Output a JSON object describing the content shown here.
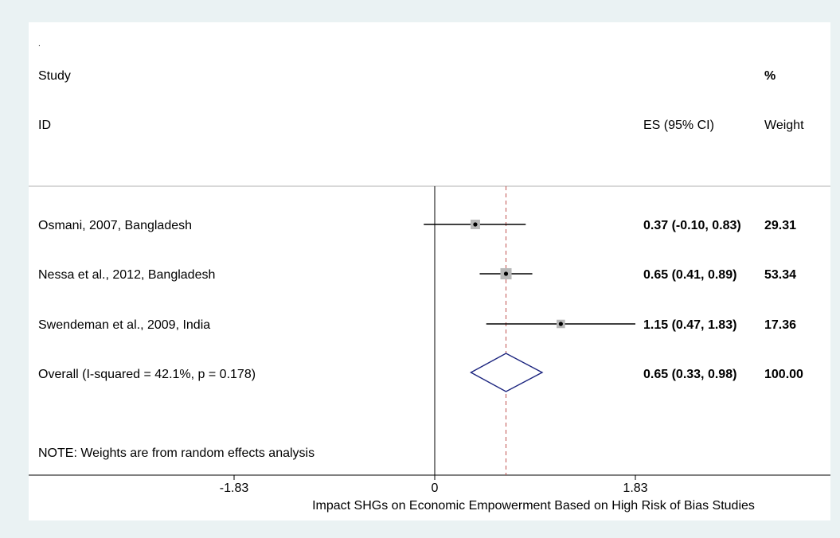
{
  "chart_data": {
    "type": "forest",
    "header": {
      "dot": ".",
      "study": "Study",
      "id": "ID",
      "es": "ES (95% CI)",
      "pct": "%",
      "weight": "Weight"
    },
    "xlabel": "Impact SHGs on Economic Empowerment Based on High Risk of Bias Studies",
    "xlim": [
      -1.83,
      2.7
    ],
    "xticks": [
      {
        "value": -1.83,
        "label": "-1.83"
      },
      {
        "value": 0,
        "label": "0"
      },
      {
        "value": 1.83,
        "label": "1.83"
      }
    ],
    "studies": [
      {
        "label": "Osmani, 2007, Bangladesh",
        "es": 0.37,
        "lo": -0.1,
        "hi": 0.83,
        "weight": 29.31,
        "es_text": "0.37 (-0.10, 0.83)",
        "weight_text": "29.31"
      },
      {
        "label": "Nessa et al., 2012, Bangladesh",
        "es": 0.65,
        "lo": 0.41,
        "hi": 0.89,
        "weight": 53.34,
        "es_text": "0.65 (0.41, 0.89)",
        "weight_text": "53.34"
      },
      {
        "label": "Swendeman et al., 2009, India",
        "es": 1.15,
        "lo": 0.47,
        "hi": 1.83,
        "weight": 17.36,
        "es_text": "1.15 (0.47, 1.83)",
        "weight_text": "17.36"
      }
    ],
    "overall": {
      "label": "Overall  (I-squared = 42.1%, p = 0.178)",
      "es": 0.65,
      "lo": 0.33,
      "hi": 0.98,
      "es_text": "0.65 (0.33, 0.98)",
      "weight_text": "100.00"
    },
    "note": "NOTE: Weights are from random effects analysis",
    "colors": {
      "background": "#eaf2f3",
      "panel": "#ffffff",
      "reference_line": "#c0504d",
      "diamond": "#1a237e",
      "weight_box": "#b8b8b8"
    }
  }
}
